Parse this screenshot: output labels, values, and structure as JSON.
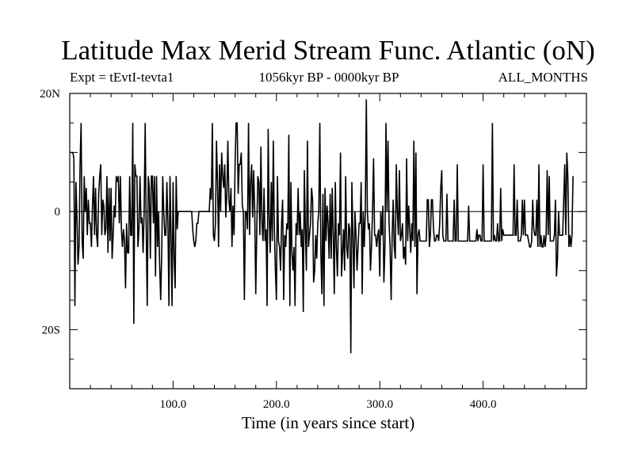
{
  "chart_data": {
    "type": "line",
    "title": "Latitude Max Merid Stream Func. Atlantic (oN)",
    "subtitle_left": "Expt = tEvtI-tevta1",
    "subtitle_center": "1056kyr BP - 0000kyr BP",
    "subtitle_right": "ALL_MONTHS",
    "xlabel": "Time (in years since start)",
    "ylabel": "",
    "xlim": [
      0,
      500
    ],
    "ylim": [
      -30,
      20
    ],
    "xticks": [
      {
        "value": 100,
        "label": "100.0"
      },
      {
        "value": 200,
        "label": "200.0"
      },
      {
        "value": 300,
        "label": "300.0"
      },
      {
        "value": 400,
        "label": "400.0"
      }
    ],
    "yticks": [
      {
        "value": 20,
        "label": "20N"
      },
      {
        "value": 0,
        "label": "0"
      },
      {
        "value": -20,
        "label": "20S"
      }
    ],
    "reference_line_y": 0,
    "series": [
      {
        "name": "tEvtI-tevta1",
        "x_start": 1,
        "x_step": 1,
        "values": [
          10,
          10,
          10,
          9,
          -16,
          5,
          -1,
          -9,
          -6,
          8,
          15,
          -5,
          -8,
          6,
          0,
          4,
          -4,
          2,
          -2,
          -2,
          -6,
          1,
          6,
          -4,
          4,
          -4,
          -6,
          3,
          6,
          8,
          -4,
          2,
          1,
          -4,
          -3,
          6,
          -7,
          4,
          -5,
          4,
          -8,
          -4,
          1,
          -1,
          6,
          5,
          6,
          -2,
          6,
          -3,
          -6,
          -3,
          -5,
          -13,
          -2,
          -7,
          -7,
          6,
          -4,
          -4,
          15,
          -19,
          8,
          6,
          6,
          -6,
          -3,
          6,
          -2,
          -1,
          -7,
          0,
          15,
          -3,
          -16,
          6,
          4,
          -8,
          6,
          6,
          -2,
          6,
          -11,
          6,
          -6,
          0,
          -9,
          -15,
          -7,
          6,
          0,
          -4,
          -4,
          5,
          -2,
          -16,
          6,
          -4,
          -16,
          5,
          -8,
          -13,
          6,
          -3,
          0,
          0,
          0,
          0,
          0,
          0,
          0,
          0,
          0,
          0,
          0,
          0,
          0,
          0,
          -3,
          -5,
          -6,
          -5,
          -2,
          -2,
          0,
          0,
          0,
          0,
          0,
          0,
          0,
          0,
          0,
          0,
          0,
          4,
          2,
          15,
          -4,
          -5,
          -2,
          12,
          5,
          -6,
          8,
          0,
          10,
          6,
          4,
          8,
          -1,
          3,
          12,
          2,
          0,
          4,
          -6,
          1,
          -4,
          8,
          15,
          15,
          3,
          8,
          8,
          10,
          1,
          0,
          -15,
          0,
          0,
          -3,
          15,
          -4,
          5,
          8,
          -1,
          7,
          0,
          -14,
          -3,
          6,
          5,
          -4,
          11,
          -2,
          -5,
          4,
          -5,
          -3,
          -16,
          14,
          -1,
          -7,
          5,
          -5,
          12,
          -3,
          -10,
          -15,
          6,
          -5,
          -6,
          -10,
          -2,
          2,
          -15,
          -4,
          -6,
          -2,
          -3,
          13,
          -16,
          5,
          -7,
          -10,
          -6,
          -16,
          -2,
          -4,
          4,
          -4,
          0,
          -6,
          -3,
          -17,
          7,
          -3,
          -10,
          12,
          -6,
          -4,
          -2,
          4,
          2,
          -12,
          -10,
          -4,
          -8,
          -2,
          0,
          15,
          -7,
          -14,
          3,
          -16,
          4,
          -5,
          1,
          -2,
          -8,
          3,
          -8,
          4,
          -4,
          -14,
          5,
          -6,
          -11,
          -2,
          -4,
          10,
          -11,
          -7,
          -3,
          -10,
          6,
          -6,
          -8,
          -2,
          -3,
          -24,
          5,
          -4,
          -13,
          0,
          -4,
          -10,
          -6,
          -2,
          -2,
          5,
          -14,
          0,
          -6,
          0,
          19,
          0,
          -3,
          -2,
          -10,
          -6,
          0,
          9,
          -4,
          -4,
          -6,
          -4,
          -3,
          -11,
          0,
          -4,
          1,
          -12,
          -6,
          15,
          0,
          12,
          -2,
          -6,
          -15,
          -4,
          2,
          -6,
          -8,
          8,
          0,
          -4,
          7,
          -5,
          -4,
          -2,
          -8,
          -6,
          -9,
          9,
          -5,
          1,
          -3,
          -7,
          -2,
          -5,
          12,
          -6,
          10,
          -14,
          -4,
          -3,
          -5,
          -5,
          -5,
          -5,
          -5,
          -5,
          -5,
          2,
          2,
          -6,
          -4,
          2,
          2,
          -3,
          -5,
          -5,
          -4,
          -4,
          -5,
          -2,
          4,
          7,
          -4,
          -5,
          -5,
          -5,
          3,
          -5,
          -5,
          -5,
          -5,
          -5,
          -5,
          2,
          -5,
          -5,
          8,
          -5,
          -5,
          -5,
          -5,
          -5,
          -5,
          -5,
          -5,
          -5,
          -5,
          1,
          -5,
          -5,
          -5,
          -5,
          -5,
          -5,
          -5,
          -3,
          -5,
          -4,
          -4,
          -5,
          -5,
          8,
          -5,
          -5,
          -5,
          -5,
          -5,
          -5,
          -5,
          -5,
          15,
          -5,
          -4,
          -5,
          -5,
          -2,
          -5,
          -5,
          4,
          -5,
          -3,
          -4,
          -4,
          -4,
          -4,
          -4,
          -4,
          -4,
          -4,
          -4,
          -4,
          8,
          -4,
          -4,
          2,
          -5,
          -5,
          -5,
          -4,
          2,
          -4,
          2,
          -4,
          -4,
          -4,
          -5,
          -6,
          -6,
          -5,
          2,
          -3,
          -4,
          -4,
          2,
          -6,
          8,
          -6,
          -4,
          -6,
          -6,
          -4,
          -6,
          -4,
          7,
          -4,
          6,
          -5,
          -5,
          -5,
          -5,
          -4,
          2,
          -11,
          -8,
          0,
          -4,
          -4,
          -4,
          -4,
          2,
          8,
          -4,
          10,
          6,
          -6,
          -4,
          -6,
          -4,
          6
        ]
      }
    ]
  }
}
